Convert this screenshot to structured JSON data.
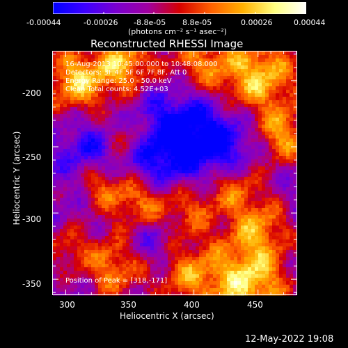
{
  "colorbar": {
    "tick_labels": [
      "-0.00044",
      "-0.00026",
      "-8.8e-05",
      "8.8e-05",
      "0.00026",
      "0.00044"
    ],
    "units": "(photons cm⁻² s⁻¹ asec⁻²)",
    "colormap": [
      "#0000ff",
      "#3c00ff",
      "#7a00d0",
      "#a000a0",
      "#d60000",
      "#ff6000",
      "#ffb000",
      "#ffff80",
      "#ffffff"
    ]
  },
  "plot": {
    "title": "Reconstructed RHESSI Image",
    "xlabel": "Heliocentric X (arcsec)",
    "ylabel": "Heliocentric Y (arcsec)",
    "x_ticks": [
      "300",
      "350",
      "400",
      "450"
    ],
    "y_ticks": [
      "-200",
      "-250",
      "-300",
      "-350"
    ],
    "xlim": [
      290,
      480
    ],
    "ylim": [
      -362,
      -178
    ]
  },
  "overlay": {
    "time_range": "16-Aug-2013 10:45:00.000 to 10:48:08.000",
    "detectors": "Detectors: 3F 4F 5F 6F 7F 8F, Att 0",
    "energy": "Energy Range: 25.0 - 50.0 keV",
    "clean": "Clean     Total counts: 4.52E+03",
    "peak": "Position of Peak = [318,-171]"
  },
  "footer": {
    "timestamp": "12-May-2022 19:08"
  }
}
